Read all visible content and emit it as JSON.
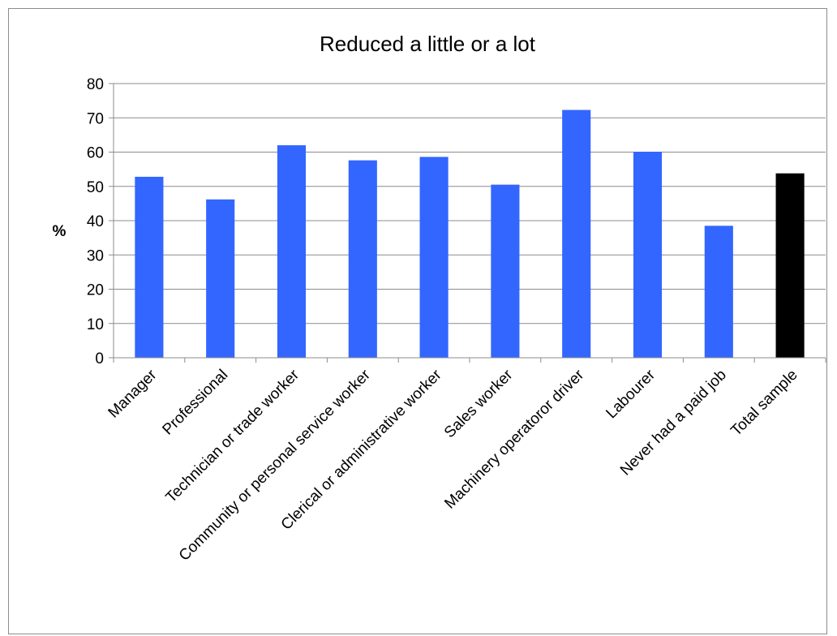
{
  "chart_data": {
    "type": "bar",
    "title": "Reduced a little or a lot",
    "xlabel": "",
    "ylabel": "%",
    "ylim": [
      0,
      80
    ],
    "yticks": [
      0,
      10,
      20,
      30,
      40,
      50,
      60,
      70,
      80
    ],
    "grid": true,
    "legend": "none",
    "categories": [
      "Manager",
      "Professional",
      "Technician or trade worker",
      "Community or personal service worker",
      "Clerical or administrative worker",
      "Sales worker",
      "Machinery operatoror driver",
      "Labourer",
      "Never had a paid job",
      "Total sample"
    ],
    "values": [
      52.8,
      46.2,
      62,
      57.6,
      58.6,
      50.5,
      72.3,
      60.1,
      38.5,
      53.8
    ],
    "colors": {
      "bar": "#3366ff",
      "highlight_bar": "#000000",
      "grid": "#8c8c8c",
      "axis": "#8c8c8c"
    },
    "highlight_category": "Total sample"
  }
}
